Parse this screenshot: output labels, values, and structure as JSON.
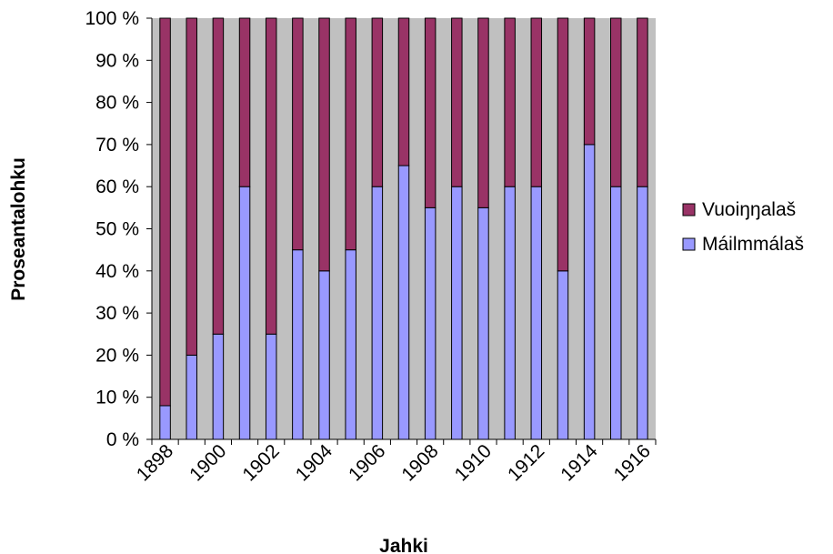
{
  "chart_data": {
    "type": "bar",
    "stacked": "percent",
    "x": [
      1898,
      1899,
      1900,
      1901,
      1902,
      1903,
      1904,
      1905,
      1906,
      1907,
      1908,
      1909,
      1910,
      1911,
      1912,
      1913,
      1914,
      1915,
      1916
    ],
    "x_tick_labels": [
      "1898",
      "1900",
      "1902",
      "1904",
      "1906",
      "1908",
      "1910",
      "1912",
      "1914",
      "1916"
    ],
    "series": [
      {
        "name": "Máilmmálaš",
        "color": "#9999ff",
        "values": [
          8,
          20,
          25,
          60,
          25,
          45,
          40,
          45,
          60,
          65,
          55,
          60,
          55,
          60,
          60,
          40,
          70,
          60,
          60
        ]
      },
      {
        "name": "Vuoiŋŋalaš",
        "color": "#993366",
        "values": [
          92,
          80,
          75,
          40,
          75,
          55,
          60,
          55,
          40,
          35,
          45,
          40,
          45,
          40,
          40,
          60,
          30,
          40,
          40
        ]
      }
    ],
    "y_tick_labels": [
      "0 %",
      "10 %",
      "20 %",
      "30 %",
      "40 %",
      "50 %",
      "60 %",
      "70 %",
      "80 %",
      "90 %",
      "100 %"
    ],
    "ylim": [
      0,
      100
    ],
    "xlabel": "Jahki",
    "ylabel": "Proseantalohku",
    "plot_background": "#c0c0c0",
    "legend": {
      "position": "right",
      "order": [
        "Vuoiŋŋalaš",
        "Máilmmálaš"
      ]
    }
  }
}
